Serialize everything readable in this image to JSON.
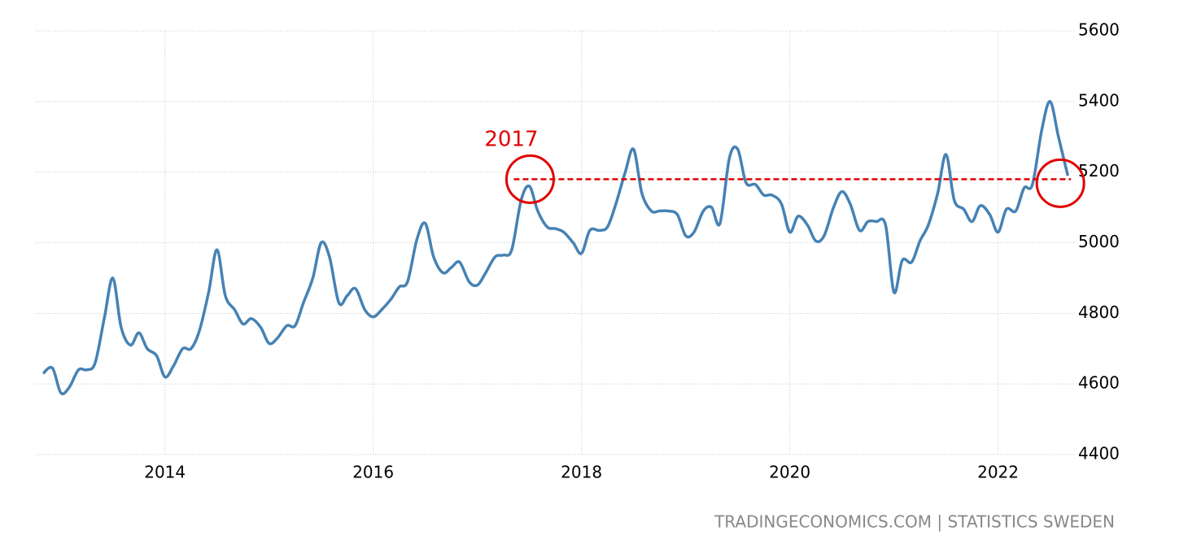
{
  "chart_data": {
    "type": "line",
    "source": "TRADINGECONOMICS.COM | STATISTICS SWEDEN",
    "annotation": "2017",
    "reference_line": {
      "value": 5180,
      "x": [
        2017.35,
        2022.7
      ],
      "color": "#e00000"
    },
    "xlim": [
      2012.76,
      2022.73
    ],
    "xticks": [
      2014,
      2016,
      2018,
      2020,
      2022
    ],
    "ylim": [
      4400,
      5600
    ],
    "yticks": [
      4400,
      4600,
      4800,
      5000,
      5200,
      5400,
      5600
    ],
    "grid": true,
    "series": [
      {
        "color": "#4682b4",
        "x": [
          2012.83,
          2012.92,
          2013.0,
          2013.08,
          2013.17,
          2013.25,
          2013.33,
          2013.42,
          2013.5,
          2013.58,
          2013.67,
          2013.75,
          2013.83,
          2013.92,
          2014.0,
          2014.08,
          2014.17,
          2014.25,
          2014.33,
          2014.42,
          2014.5,
          2014.58,
          2014.67,
          2014.75,
          2014.83,
          2014.92,
          2015.0,
          2015.08,
          2015.17,
          2015.25,
          2015.33,
          2015.42,
          2015.5,
          2015.58,
          2015.67,
          2015.75,
          2015.83,
          2015.92,
          2016.0,
          2016.08,
          2016.17,
          2016.25,
          2016.33,
          2016.42,
          2016.5,
          2016.58,
          2016.67,
          2016.75,
          2016.83,
          2016.92,
          2017.0,
          2017.08,
          2017.17,
          2017.25,
          2017.33,
          2017.42,
          2017.5,
          2017.58,
          2017.67,
          2017.75,
          2017.83,
          2017.92,
          2018.0,
          2018.08,
          2018.17,
          2018.25,
          2018.33,
          2018.42,
          2018.5,
          2018.58,
          2018.67,
          2018.75,
          2018.83,
          2018.92,
          2019.0,
          2019.08,
          2019.17,
          2019.25,
          2019.33,
          2019.42,
          2019.5,
          2019.58,
          2019.67,
          2019.75,
          2019.83,
          2019.92,
          2020.0,
          2020.08,
          2020.17,
          2020.25,
          2020.33,
          2020.42,
          2020.5,
          2020.58,
          2020.67,
          2020.75,
          2020.83,
          2020.92,
          2021.0,
          2021.08,
          2021.17,
          2021.25,
          2021.33,
          2021.42,
          2021.5,
          2021.58,
          2021.67,
          2021.75,
          2021.83,
          2021.92,
          2022.0,
          2022.08,
          2022.17,
          2022.25,
          2022.33,
          2022.42,
          2022.5,
          2022.58,
          2022.67
        ],
        "values": [
          4630,
          4645,
          4575,
          4590,
          4640,
          4640,
          4660,
          4790,
          4900,
          4760,
          4710,
          4745,
          4700,
          4680,
          4620,
          4650,
          4700,
          4700,
          4750,
          4860,
          4980,
          4850,
          4810,
          4770,
          4785,
          4760,
          4715,
          4730,
          4765,
          4765,
          4830,
          4900,
          5000,
          4960,
          4830,
          4850,
          4870,
          4810,
          4790,
          4810,
          4840,
          4875,
          4890,
          5010,
          5055,
          4960,
          4915,
          4930,
          4945,
          4890,
          4880,
          4915,
          4960,
          4965,
          4980,
          5120,
          5160,
          5090,
          5045,
          5040,
          5030,
          5000,
          4970,
          5035,
          5035,
          5045,
          5110,
          5200,
          5265,
          5140,
          5090,
          5090,
          5090,
          5080,
          5020,
          5030,
          5090,
          5100,
          5055,
          5240,
          5265,
          5170,
          5165,
          5135,
          5135,
          5110,
          5030,
          5075,
          5050,
          5005,
          5020,
          5100,
          5145,
          5110,
          5035,
          5060,
          5060,
          5050,
          4860,
          4950,
          4945,
          5005,
          5050,
          5140,
          5250,
          5120,
          5095,
          5060,
          5105,
          5080,
          5030,
          5095,
          5090,
          5155,
          5165,
          5320,
          5400,
          5300,
          5190
        ]
      }
    ]
  }
}
